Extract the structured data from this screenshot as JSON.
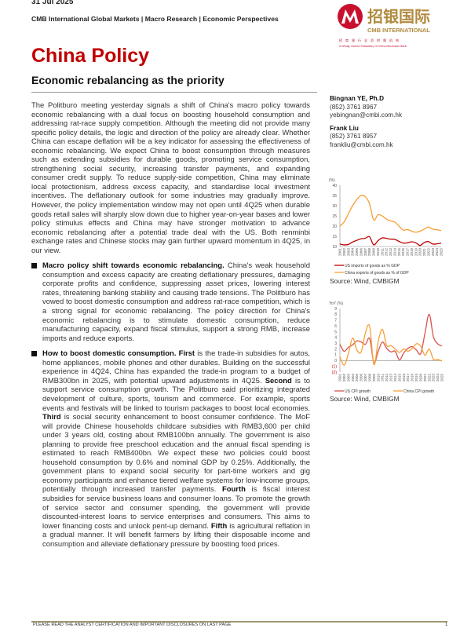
{
  "header": {
    "date": "31 Jul 2025",
    "series": "CMB International Global Markets | Macro Research | Economic Perspectives",
    "title": "China Policy",
    "subtitle": "Economic rebalancing as the priority"
  },
  "logo": {
    "chinese_name": "招银国际",
    "english_name": "CMB INTERNATIONAL",
    "chinese_tagline": "招商银行全资附属机构",
    "english_tagline": "A Wholly Owned Subsidiary Of China Merchants Bank",
    "brand_red": "#c8102e",
    "brand_gold": "#b08a3e"
  },
  "authors": [
    {
      "name": "Bingnan YE, Ph.D",
      "phone": "(852) 3761 8967",
      "email": "yebingnan@cmbi.com.hk"
    },
    {
      "name": "Frank Liu",
      "phone": "(852) 3761 8957",
      "email": "frankliu@cmbi.com.hk"
    }
  ],
  "body": {
    "intro": "The Politburo meeting yesterday signals a shift of China's macro policy towards economic rebalancing with a dual focus on boosting household consumption and addressing rat-race supply competition. Although the meeting did not provide many specific policy details, the logic and direction of the policy are already clear. Whether China can escape deflation will be a key indicator for assessing the effectiveness of economic rebalancing. We expect China to boost consumption through measures such as extending subsidies for durable goods, promoting service consumption, strengthening social security, increasing transfer payments, and expanding consumer credit supply. To reduce supply-side competition, China may eliminate local protectionism, address excess capacity, and standardise local investment incentives. The deflationary outlook for some industries may gradually improve. However, the policy implementation window may not open until 4Q25 when durable goods retail sales will sharply slow down due to higher year-on-year bases and lower policy stimulus effects and China may have stronger motivation to advance economic rebalancing after a potential trade deal with the US. Both renminbi exchange rates and Chinese stocks may gain further upward momentum in 4Q25, in our view.",
    "bullets": [
      [
        {
          "text": "Macro policy shift towards economic rebalancing.",
          "bold": true
        },
        {
          "text": " China's weak household consumption and excess capacity are creating deflationary pressures, damaging corporate profits and confidence, suppressing asset prices, lowering interest rates, threatening banking stability and causing trade tensions. The Politburo has vowed to boost domestic consumption and address rat-race competition, which is a strong signal for economic rebalancing. The policy direction for China's economic rebalancing is to stimulate domestic consumption, reduce manufacturing capacity, expand fiscal stimulus, support a strong RMB, increase imports and reduce exports.",
          "bold": false
        }
      ],
      [
        {
          "text": "How to boost domestic consumption. First",
          "bold": true
        },
        {
          "text": " is the trade-in subsidies for autos, home appliances, mobile phones and other durables. Building on the successful experience in 4Q24, China has expanded the trade-in program to a budget of RMB300bn in 2025, with potential upward adjustments in 4Q25. ",
          "bold": false
        },
        {
          "text": "Second",
          "bold": true
        },
        {
          "text": " is to support service consumption growth. The Politburo said prioritizing integrated development of culture, sports, tourism and commerce. For example, sports events and festivals will be linked to tourism packages to boost local economies. ",
          "bold": false
        },
        {
          "text": "Third",
          "bold": true
        },
        {
          "text": " is social security enhancement to boost consumer confidence. The MoF will provide Chinese households childcare subsidies with RMB3,600 per child under 3 years old, costing about RMB100bn annually. The government is also planning to provide free preschool education and the annual fiscal spending is estimated to reach RMB400bn. We expect these two policies could boost household consumption by 0.6% and nominal GDP by 0.25%. Additionally, the government plans to expand social security for part-time workers and gig economy participants and enhance tiered welfare systems for low-income groups, potentially through increased transfer payments. ",
          "bold": false
        },
        {
          "text": "Fourth",
          "bold": true
        },
        {
          "text": " is fiscal interest subsidies for service business loans and consumer loans. To promote the growth of service sector and consumer spending, the government will provide discounted-interest loans to service enterprises and consumers. This aims to lower financing costs and unlock pent-up demand. ",
          "bold": false
        },
        {
          "text": "Fifth",
          "bold": true
        },
        {
          "text": " is agricultural reflation in a gradual manner. It will benefit farmers by lifting their disposable income and consumption and alleviate deflationary pressure by boosting food prices.",
          "bold": false
        }
      ]
    ]
  },
  "chart_data": [
    {
      "type": "line",
      "ylabel": "(%)",
      "ylim": [
        10,
        40
      ],
      "yticks": [
        10,
        15,
        20,
        25,
        30,
        35,
        40
      ],
      "x": [
        "2001",
        "2002",
        "2003",
        "2004",
        "2005",
        "2006",
        "2007",
        "2008",
        "2009",
        "2010",
        "2011",
        "2012",
        "2013",
        "2014",
        "2015",
        "2016",
        "2017",
        "2018",
        "2019",
        "2020",
        "2021",
        "2022",
        "2023",
        "2024",
        "2025"
      ],
      "series": [
        {
          "name": "US imports of goods as % GDP",
          "color": "#c00000",
          "values": [
            11.2,
            10.8,
            11.0,
            12.2,
            13.0,
            13.8,
            14.0,
            14.8,
            10.8,
            12.8,
            14.2,
            14.0,
            13.6,
            13.5,
            12.5,
            11.7,
            11.8,
            12.3,
            11.8,
            10.5,
            12.0,
            12.4,
            11.2,
            11.3,
            11.6
          ]
        },
        {
          "name": "China exports of goods as % of GDP",
          "color": "#f7a035",
          "values": [
            20.0,
            22.0,
            26.0,
            30.0,
            33.0,
            35.0,
            34.5,
            31.0,
            23.0,
            25.5,
            25.0,
            23.5,
            22.5,
            22.0,
            20.0,
            18.0,
            18.3,
            17.5,
            17.0,
            17.5,
            18.5,
            19.5,
            18.5,
            18.2,
            17.8
          ]
        }
      ],
      "source": "Source: Wind, CMBIGM"
    },
    {
      "type": "line",
      "ylabel": "YoY (%)",
      "ylim": [
        -2,
        9
      ],
      "yticks": [
        "(2)",
        "(1)",
        "0",
        "1",
        "2",
        "3",
        "4",
        "5",
        "6",
        "7",
        "8",
        "9"
      ],
      "x": [
        "2001",
        "2002",
        "2003",
        "2004",
        "2005",
        "2006",
        "2007",
        "2008",
        "2009",
        "2010",
        "2011",
        "2012",
        "2013",
        "2014",
        "2015",
        "2016",
        "2017",
        "2018",
        "2019",
        "2020",
        "2021",
        "2022",
        "2023",
        "2024",
        "2025"
      ],
      "series": [
        {
          "name": "US CPI growth",
          "color": "#d9534f",
          "values": [
            2.8,
            1.6,
            2.3,
            2.7,
            3.4,
            3.2,
            2.8,
            3.8,
            -0.4,
            1.6,
            3.2,
            2.1,
            1.5,
            1.6,
            0.1,
            1.3,
            2.1,
            2.4,
            1.8,
            1.2,
            4.7,
            8.0,
            4.1,
            2.9,
            2.5
          ]
        },
        {
          "name": "China CPI growth",
          "color": "#f7a035",
          "values": [
            0.7,
            -0.8,
            1.2,
            3.9,
            1.8,
            1.5,
            4.8,
            5.9,
            -0.7,
            3.3,
            5.4,
            2.6,
            2.6,
            2.0,
            1.4,
            2.0,
            1.6,
            2.1,
            2.9,
            2.5,
            0.9,
            2.0,
            0.2,
            0.2,
            -0.1
          ]
        }
      ],
      "source": "Source: Wind, CMBIGM"
    }
  ],
  "footer": {
    "disclaimer": "PLEASE READ THE ANALYST CERTIFICATION AND IMPORTANT DISCLOSURES ON LAST PAGE",
    "page": "1"
  }
}
